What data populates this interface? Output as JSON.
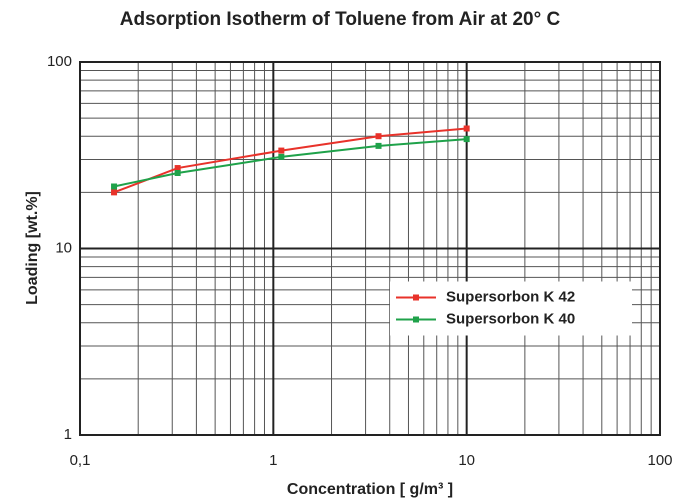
{
  "chart_data": {
    "type": "line",
    "title": "Adsorption Isotherm of Toluene from Air at 20° C",
    "x_label": "Concentration [ g/m³ ]",
    "y_label": "Loading [wt.%]",
    "x_log": true,
    "y_log": true,
    "grid": true,
    "minor_grid": true,
    "legend": "center right",
    "xlim": [
      0.1,
      100
    ],
    "xticks": [
      {
        "value": 0.1,
        "label": "0,1"
      },
      1,
      10,
      100
    ],
    "ylim": [
      1,
      100
    ],
    "yticks": [
      1,
      10,
      100
    ],
    "series": [
      {
        "name": "Supersorbon K 42",
        "color": "#e8322a",
        "x": [
          0.15,
          0.32,
          1.1,
          3.5,
          10
        ],
        "values": [
          20,
          27,
          33.5,
          40,
          44
        ]
      },
      {
        "name": "Supersorbon K 40",
        "color": "#1fa24a",
        "x": [
          0.15,
          0.32,
          1.1,
          3.5,
          10
        ],
        "values": [
          21.5,
          25.4,
          31,
          35.5,
          38.6
        ]
      }
    ]
  }
}
